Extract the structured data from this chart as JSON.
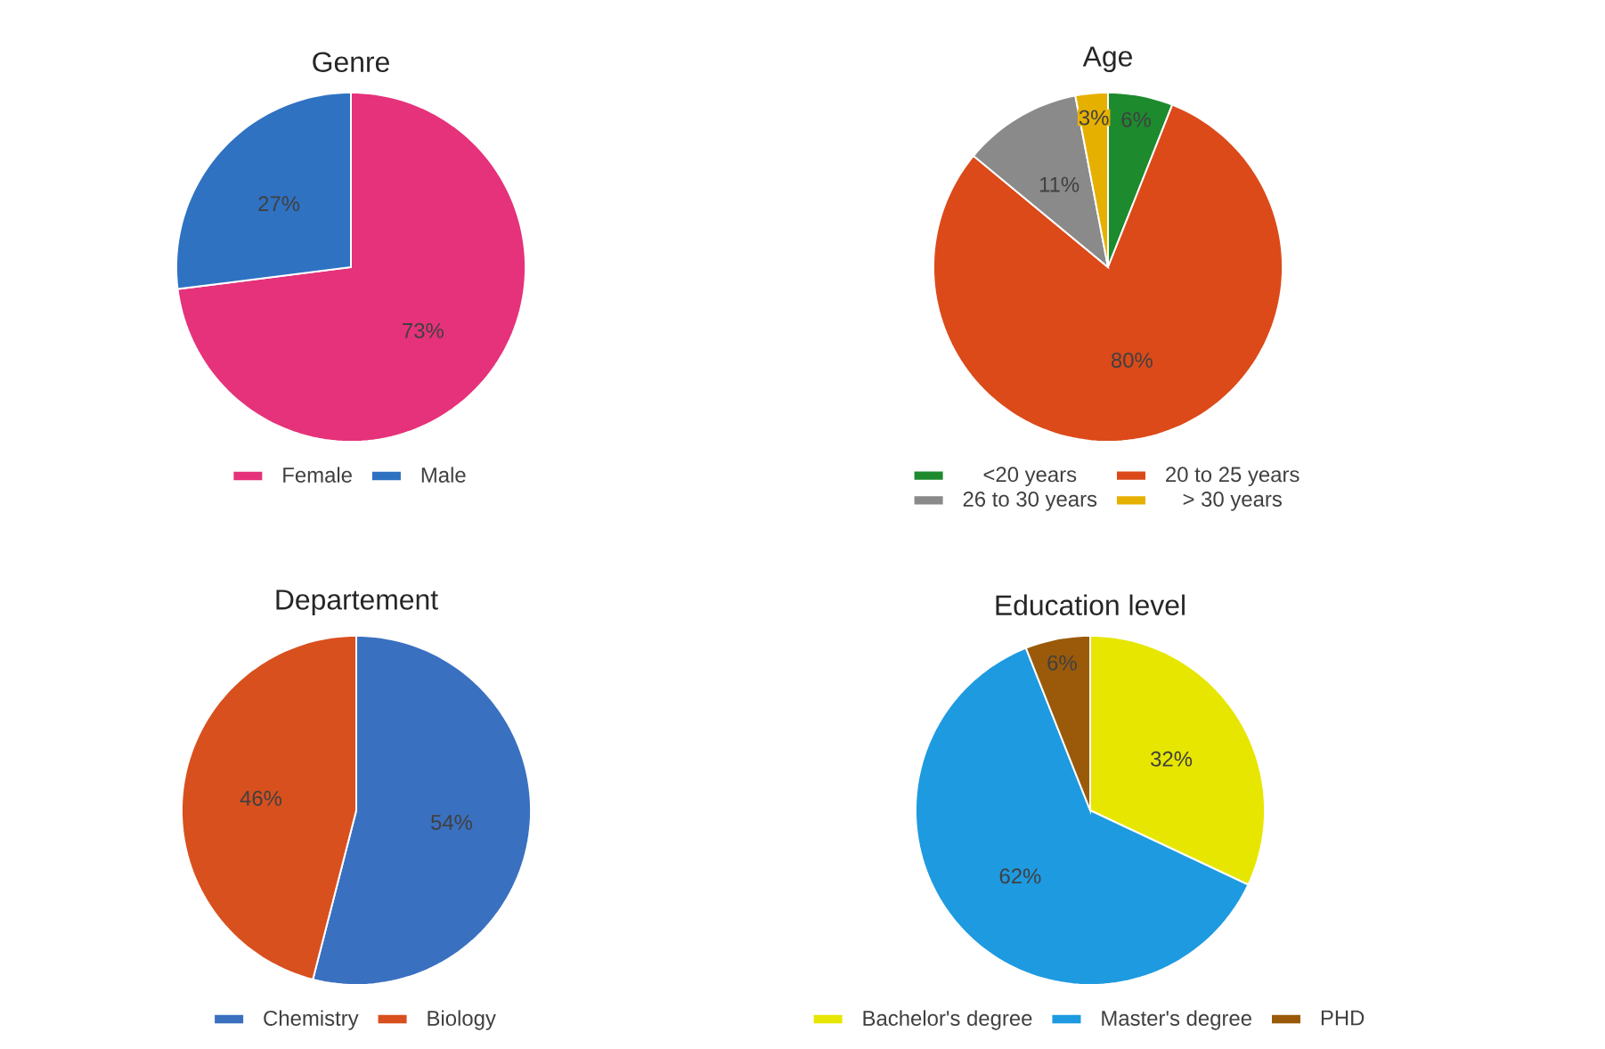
{
  "chart_data": [
    {
      "type": "pie",
      "title": "Genre",
      "categories": [
        "Female",
        "Male"
      ],
      "values": [
        73,
        27
      ],
      "colors": [
        "#e5327a",
        "#2f72c2"
      ],
      "value_labels": [
        "73%",
        "27%"
      ],
      "legend": "bottom"
    },
    {
      "type": "pie",
      "title": "Age",
      "categories": [
        "<20 years",
        "20 to 25 years",
        "26 to 30 years",
        "> 30 years"
      ],
      "values": [
        6,
        80,
        11,
        3
      ],
      "colors": [
        "#1d8a2e",
        "#dc4a1a",
        "#8a8a8a",
        "#e6b000"
      ],
      "value_labels": [
        "6%",
        "80%",
        "11%",
        "3%"
      ],
      "legend": "bottom"
    },
    {
      "type": "pie",
      "title": "Departement",
      "categories": [
        "Chemistry",
        "Biology"
      ],
      "values": [
        54,
        46
      ],
      "colors": [
        "#3a70c0",
        "#d8501e"
      ],
      "value_labels": [
        "54%",
        "46%"
      ],
      "legend": "bottom"
    },
    {
      "type": "pie",
      "title": "Education level",
      "categories": [
        "Bachelor's degree",
        "Master's degree",
        "PHD"
      ],
      "values": [
        32,
        62,
        6
      ],
      "colors": [
        "#e6e600",
        "#1e9ae0",
        "#9a5a0a"
      ],
      "value_labels": [
        "32%",
        "62%",
        "6%"
      ],
      "legend": "bottom"
    }
  ]
}
